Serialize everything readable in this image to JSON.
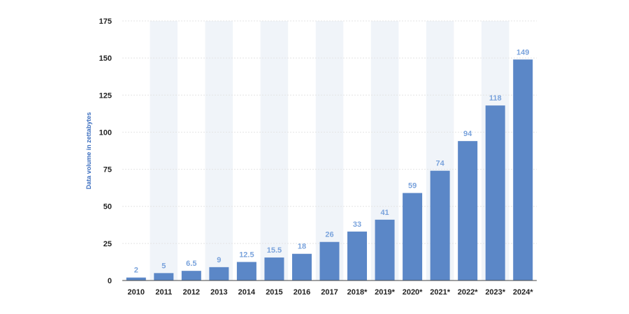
{
  "chart_data": {
    "type": "bar",
    "title": "",
    "xlabel": "",
    "ylabel": "Data volume in zettabytes",
    "ylim": [
      0,
      175
    ],
    "yticks": [
      0,
      25,
      50,
      75,
      100,
      125,
      150,
      175
    ],
    "grid": true,
    "legend": "none",
    "categories": [
      "2010",
      "2011",
      "2012",
      "2013",
      "2014",
      "2015",
      "2016",
      "2017",
      "2018*",
      "2019*",
      "2020*",
      "2021*",
      "2022*",
      "2023*",
      "2024*"
    ],
    "values": [
      2,
      5,
      6.5,
      9,
      12.5,
      15.5,
      18,
      26,
      33,
      41,
      59,
      74,
      94,
      118,
      149
    ],
    "data_labels": [
      "2",
      "5",
      "6.5",
      "9",
      "12.5",
      "15.5",
      "18",
      "26",
      "33",
      "41",
      "59",
      "74",
      "94",
      "118",
      "149"
    ],
    "colors": {
      "bar": "#5b87c7",
      "data_label": "#7aa3dc",
      "ylabel": "#3d6fbf",
      "band": "#f0f4f9",
      "grid": "#e4e4e4",
      "axis": "#444444"
    }
  }
}
